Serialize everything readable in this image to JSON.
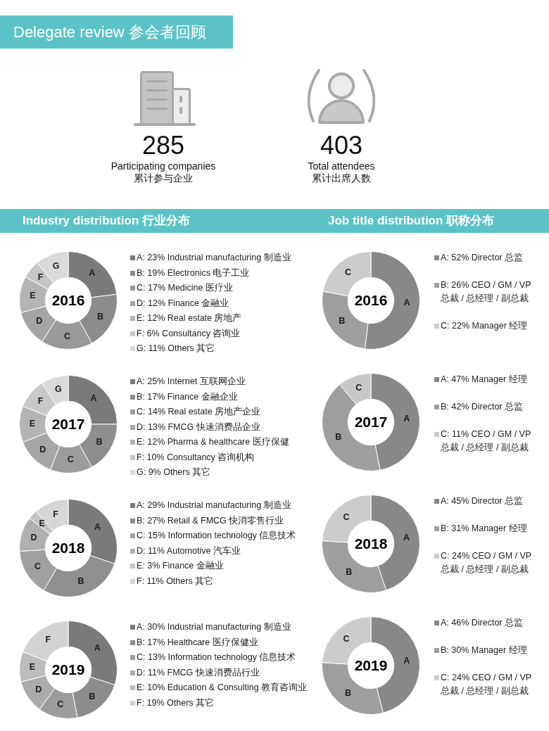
{
  "chart_data": [
    {
      "type": "other",
      "title": "Delegate review 参会者回顾",
      "annotations": [
        "285",
        "Participating companies",
        "累计参与企业",
        "403",
        "Total attendees",
        "累计出席人数"
      ]
    },
    {
      "type": "donut",
      "subtitle": "Industry distribution 行业分布",
      "title": "2016",
      "categories": [
        "A: 23% Industrial manufacturing 制造业",
        "B: 19% Electronics 电子工业",
        "C: 17% Medicine 医疗业",
        "D: 12% Finance 金融业",
        "E: 12% Real estate 房地产",
        "F: 6% Consultancy 咨询业",
        "G: 11% Others 其它"
      ],
      "values": [
        23,
        19,
        17,
        12,
        12,
        6,
        11
      ],
      "colors": [
        "#7a7a7a",
        "#8c8c8c",
        "#999999",
        "#a4a4a4",
        "#b4b4b4",
        "#c6c6c6",
        "#d9d9d9"
      ],
      "value_labels": [
        "A",
        "B",
        "C",
        "D",
        "E",
        "F",
        "G"
      ],
      "legend": "right"
    },
    {
      "type": "donut",
      "title": "2017",
      "categories": [
        "A: 25% Internet 互联网企业",
        "B: 17% Finance 金融企业",
        "C: 14% Real estate 房地产企业",
        "D: 13% FMCG 快速消费品企业",
        "E: 12% Pharma & healthcare 医疗保健",
        "F: 10% Consultancy 咨询机构",
        "G: 9% Others 其它"
      ],
      "values": [
        25,
        17,
        14,
        13,
        12,
        10,
        9
      ],
      "colors": [
        "#7a7a7a",
        "#8e8e8e",
        "#9c9c9c",
        "#a6a6a6",
        "#b4b4b4",
        "#c8c8c8",
        "#d9d9d9"
      ],
      "value_labels": [
        "A",
        "B",
        "C",
        "D",
        "E",
        "F",
        "G"
      ],
      "legend": "right"
    },
    {
      "type": "donut",
      "title": "2018",
      "categories": [
        "A: 29% Industrial manufacturing 制造业",
        "B: 27% Retail & FMCG 快消零售行业",
        "C: 15% Information technology 信息技术",
        "D: 11% Automotive 汽车业",
        "E: 3% Finance 金融业",
        "F: 11% Others 其它"
      ],
      "values": [
        29,
        27,
        15,
        11,
        3,
        11
      ],
      "colors": [
        "#7a7a7a",
        "#8f8f8f",
        "#a0a0a0",
        "#b0b0b0",
        "#c4c4c4",
        "#d6d6d6"
      ],
      "value_labels": [
        "A",
        "B",
        "C",
        "D",
        "E",
        "F"
      ],
      "legend": "right"
    },
    {
      "type": "donut",
      "title": "2019",
      "categories": [
        "A: 30% Industrial manufacturing 制造业",
        "B: 17% Healthcare 医疗保健业",
        "C: 13% Information technology 信息技术",
        "D: 11% FMCG 快速消费品行业",
        "E: 10% Education & Consulting 教育咨询业",
        "F: 19% Others 其它"
      ],
      "values": [
        30,
        17,
        13,
        11,
        10,
        19
      ],
      "colors": [
        "#7a7a7a",
        "#8c8c8c",
        "#9c9c9c",
        "#ababab",
        "#bcbcbc",
        "#d3d3d3"
      ],
      "value_labels": [
        "A",
        "B",
        "C",
        "D",
        "E",
        "F"
      ],
      "legend": "right"
    },
    {
      "type": "donut",
      "subtitle": "Job title distribution 职称分布",
      "title": "2016",
      "categories": [
        "A: 52% Director 总监",
        "B: 26% CEO / GM / VP 总裁 / 总经理 / 副总裁",
        "C: 22% Manager 经理"
      ],
      "values": [
        52,
        26,
        22
      ],
      "colors": [
        "#888888",
        "#9e9e9e",
        "#cccccc"
      ],
      "value_labels": [
        "A",
        "B",
        "C"
      ],
      "legend": "right"
    },
    {
      "type": "donut",
      "title": "2017",
      "categories": [
        "A: 47% Manager 经理",
        "B: 42% Director 总监",
        "C: 11% CEO / GM / VP 总裁 / 总经理 / 副总裁"
      ],
      "values": [
        47,
        42,
        11
      ],
      "colors": [
        "#888888",
        "#9e9e9e",
        "#c8c8c8"
      ],
      "value_labels": [
        "A",
        "B",
        "C"
      ],
      "legend": "right"
    },
    {
      "type": "donut",
      "title": "2018",
      "categories": [
        "A: 45% Director 总监",
        "B: 31% Manager 经理",
        "C: 24% CEO / GM / VP 总裁 / 总经理 / 副总裁"
      ],
      "values": [
        45,
        31,
        24
      ],
      "colors": [
        "#888888",
        "#9e9e9e",
        "#cccccc"
      ],
      "value_labels": [
        "A",
        "B",
        "C"
      ],
      "legend": "right"
    },
    {
      "type": "donut",
      "title": "2019",
      "categories": [
        "A: 46% Director 总监",
        "B: 30% Manager 经理",
        "C: 24% CEO / GM / VP 总裁 / 总经理 / 副总裁"
      ],
      "values": [
        46,
        30,
        24
      ],
      "colors": [
        "#888888",
        "#9e9e9e",
        "#cccccc"
      ],
      "value_labels": [
        "A",
        "B",
        "C"
      ],
      "legend": "right"
    }
  ]
}
